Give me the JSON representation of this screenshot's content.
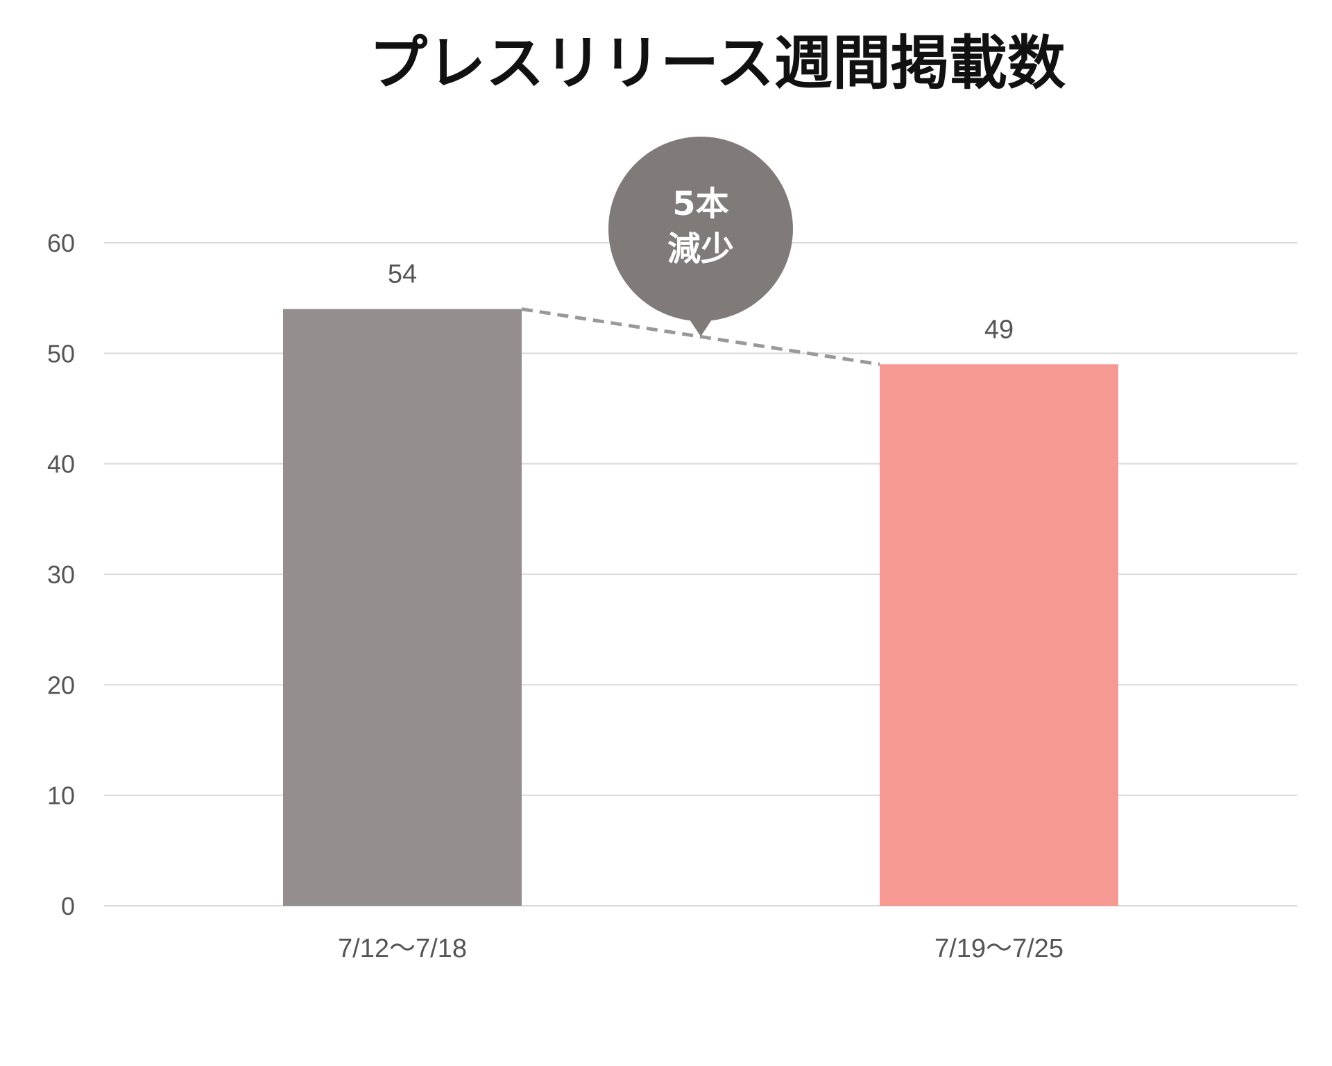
{
  "chart_data": {
    "type": "bar",
    "title": "プレスリリース週間掲載数",
    "categories": [
      "7/12〜7/18",
      "7/19〜7/25"
    ],
    "values": [
      54,
      49
    ],
    "bar_colors": [
      "#948e8d",
      "#f79993"
    ],
    "ylim": [
      0,
      60
    ],
    "yticks": [
      "0",
      "10",
      "20",
      "30",
      "40",
      "50",
      "60"
    ],
    "grid": true,
    "xlabel": "",
    "ylabel": "",
    "annotation": {
      "lines": [
        "5本",
        "減少"
      ],
      "color": "#807a79",
      "connector": "dashed"
    }
  }
}
